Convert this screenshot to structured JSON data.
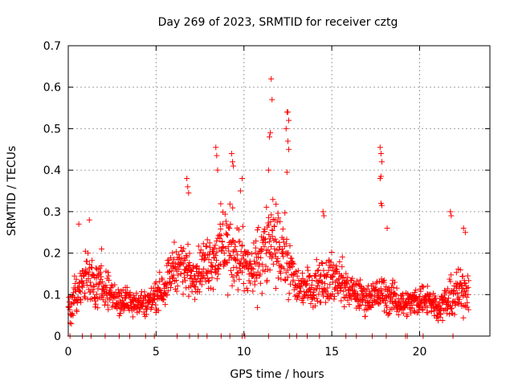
{
  "chart_data": {
    "type": "scatter",
    "title": "Day 269 of 2023, SRMTID for receiver cztg",
    "xlabel": "GPS time / hours",
    "ylabel": "SRMTID / TECUs",
    "xlim": [
      0,
      24
    ],
    "ylim": [
      0,
      0.7
    ],
    "xticks": [
      0,
      5,
      10,
      15,
      20
    ],
    "yticks": [
      0,
      0.1,
      0.2,
      0.3,
      0.4,
      0.5,
      0.6,
      0.7
    ],
    "grid": true,
    "marker": "plus",
    "color": "#ff0000",
    "series": [
      {
        "name": "SRMTID",
        "envelope_x": [
          0,
          0.5,
          1,
          1.5,
          2,
          2.5,
          3,
          3.5,
          4,
          4.5,
          5,
          5.5,
          6,
          6.5,
          7,
          7.5,
          8,
          8.5,
          9,
          9.5,
          10,
          10.5,
          11,
          11.5,
          12,
          12.5,
          13,
          13.5,
          14,
          14.5,
          15,
          15.5,
          16,
          16.5,
          17,
          17.5,
          18,
          18.5,
          19,
          19.5,
          20,
          20.5,
          21,
          21.5,
          22,
          22.5,
          22.8
        ],
        "envelope_center": [
          0.06,
          0.1,
          0.14,
          0.12,
          0.12,
          0.1,
          0.08,
          0.09,
          0.08,
          0.08,
          0.1,
          0.12,
          0.17,
          0.17,
          0.15,
          0.16,
          0.18,
          0.2,
          0.22,
          0.2,
          0.17,
          0.15,
          0.2,
          0.22,
          0.21,
          0.18,
          0.12,
          0.12,
          0.12,
          0.14,
          0.14,
          0.13,
          0.11,
          0.1,
          0.09,
          0.1,
          0.1,
          0.09,
          0.08,
          0.08,
          0.09,
          0.09,
          0.07,
          0.08,
          0.1,
          0.11,
          0.12
        ],
        "envelope_spread": [
          0.04,
          0.08,
          0.1,
          0.07,
          0.06,
          0.05,
          0.05,
          0.05,
          0.04,
          0.04,
          0.05,
          0.06,
          0.07,
          0.08,
          0.07,
          0.07,
          0.09,
          0.11,
          0.14,
          0.12,
          0.1,
          0.08,
          0.13,
          0.14,
          0.12,
          0.1,
          0.06,
          0.06,
          0.06,
          0.08,
          0.08,
          0.07,
          0.05,
          0.05,
          0.05,
          0.05,
          0.06,
          0.05,
          0.04,
          0.04,
          0.05,
          0.05,
          0.04,
          0.05,
          0.07,
          0.08,
          0.09
        ],
        "outliers": [
          {
            "x": 0.6,
            "y": 0.27
          },
          {
            "x": 1.2,
            "y": 0.28
          },
          {
            "x": 1.9,
            "y": 0.21
          },
          {
            "x": 6.75,
            "y": 0.38
          },
          {
            "x": 6.8,
            "y": 0.36
          },
          {
            "x": 6.85,
            "y": 0.345
          },
          {
            "x": 8.4,
            "y": 0.455
          },
          {
            "x": 8.45,
            "y": 0.435
          },
          {
            "x": 8.5,
            "y": 0.4
          },
          {
            "x": 9.3,
            "y": 0.44
          },
          {
            "x": 9.35,
            "y": 0.42
          },
          {
            "x": 9.4,
            "y": 0.41
          },
          {
            "x": 9.9,
            "y": 0.38
          },
          {
            "x": 9.8,
            "y": 0.35
          },
          {
            "x": 11.55,
            "y": 0.62
          },
          {
            "x": 11.6,
            "y": 0.57
          },
          {
            "x": 11.45,
            "y": 0.48
          },
          {
            "x": 11.5,
            "y": 0.49
          },
          {
            "x": 11.4,
            "y": 0.4
          },
          {
            "x": 12.45,
            "y": 0.54
          },
          {
            "x": 12.5,
            "y": 0.54
          },
          {
            "x": 12.55,
            "y": 0.52
          },
          {
            "x": 12.4,
            "y": 0.5
          },
          {
            "x": 12.5,
            "y": 0.47
          },
          {
            "x": 12.55,
            "y": 0.45
          },
          {
            "x": 12.45,
            "y": 0.395
          },
          {
            "x": 14.5,
            "y": 0.3
          },
          {
            "x": 14.55,
            "y": 0.29
          },
          {
            "x": 17.75,
            "y": 0.455
          },
          {
            "x": 17.8,
            "y": 0.44
          },
          {
            "x": 17.85,
            "y": 0.42
          },
          {
            "x": 17.8,
            "y": 0.385
          },
          {
            "x": 17.75,
            "y": 0.38
          },
          {
            "x": 17.8,
            "y": 0.32
          },
          {
            "x": 17.85,
            "y": 0.315
          },
          {
            "x": 18.15,
            "y": 0.26
          },
          {
            "x": 21.75,
            "y": 0.3
          },
          {
            "x": 21.8,
            "y": 0.29
          },
          {
            "x": 22.5,
            "y": 0.26
          },
          {
            "x": 22.6,
            "y": 0.25
          }
        ],
        "zero_x": [
          0.1,
          0.8,
          1.3,
          2.1,
          2.9,
          3.5,
          4.4,
          4.9,
          6.2,
          6.9,
          7.4,
          7.9,
          8.7,
          9.2,
          9.9,
          10.05,
          11.4,
          12.6,
          13.0,
          13.6,
          14.3,
          15.8,
          16.4,
          17.3,
          18.1,
          19.2,
          19.3,
          20.2,
          21.9
        ]
      }
    ]
  }
}
